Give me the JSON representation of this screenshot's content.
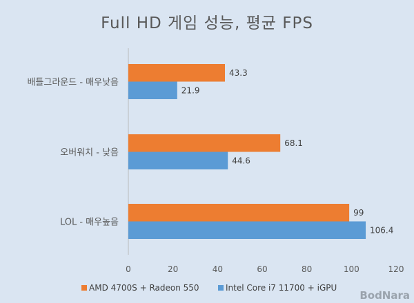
{
  "chart_data": {
    "type": "bar",
    "orientation": "horizontal",
    "title": "Full HD 게임 성능, 평균 FPS",
    "categories": [
      "배틀그라운드 - 매우낮음",
      "오버워치 - 낮음",
      "LOL - 매우높음"
    ],
    "series": [
      {
        "name": "AMD 4700S + Radeon 550",
        "color": "#ed7d31",
        "values": [
          43.3,
          68.1,
          99
        ]
      },
      {
        "name": "Intel Core i7 11700 + iGPU",
        "color": "#5b9bd5",
        "values": [
          21.9,
          44.6,
          106.4
        ]
      }
    ],
    "xlim": [
      0,
      120
    ],
    "xticks": [
      0,
      20,
      40,
      60,
      80,
      100,
      120
    ],
    "xlabel": "",
    "ylabel": "",
    "legend": "bottom",
    "grid": false
  },
  "watermark": "BodNara"
}
